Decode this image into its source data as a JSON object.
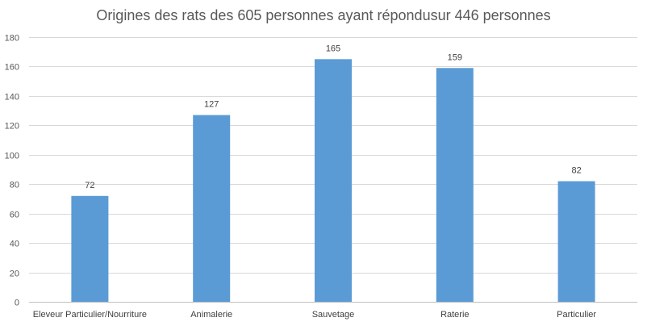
{
  "chart_data": {
    "type": "bar",
    "title": "Origines des rats des 605 personnes ayant répondusur 446 personnes",
    "categories": [
      "Eleveur Particulier/Nourriture",
      "Animalerie",
      "Sauvetage",
      "Raterie",
      "Particulier"
    ],
    "values": [
      72,
      127,
      165,
      159,
      82
    ],
    "xlabel": "",
    "ylabel": "",
    "ylim": [
      0,
      180
    ],
    "yticks": [
      0,
      20,
      40,
      60,
      80,
      100,
      120,
      140,
      160,
      180
    ],
    "grid": true,
    "legend": "none",
    "bar_color": "#5B9BD5"
  }
}
